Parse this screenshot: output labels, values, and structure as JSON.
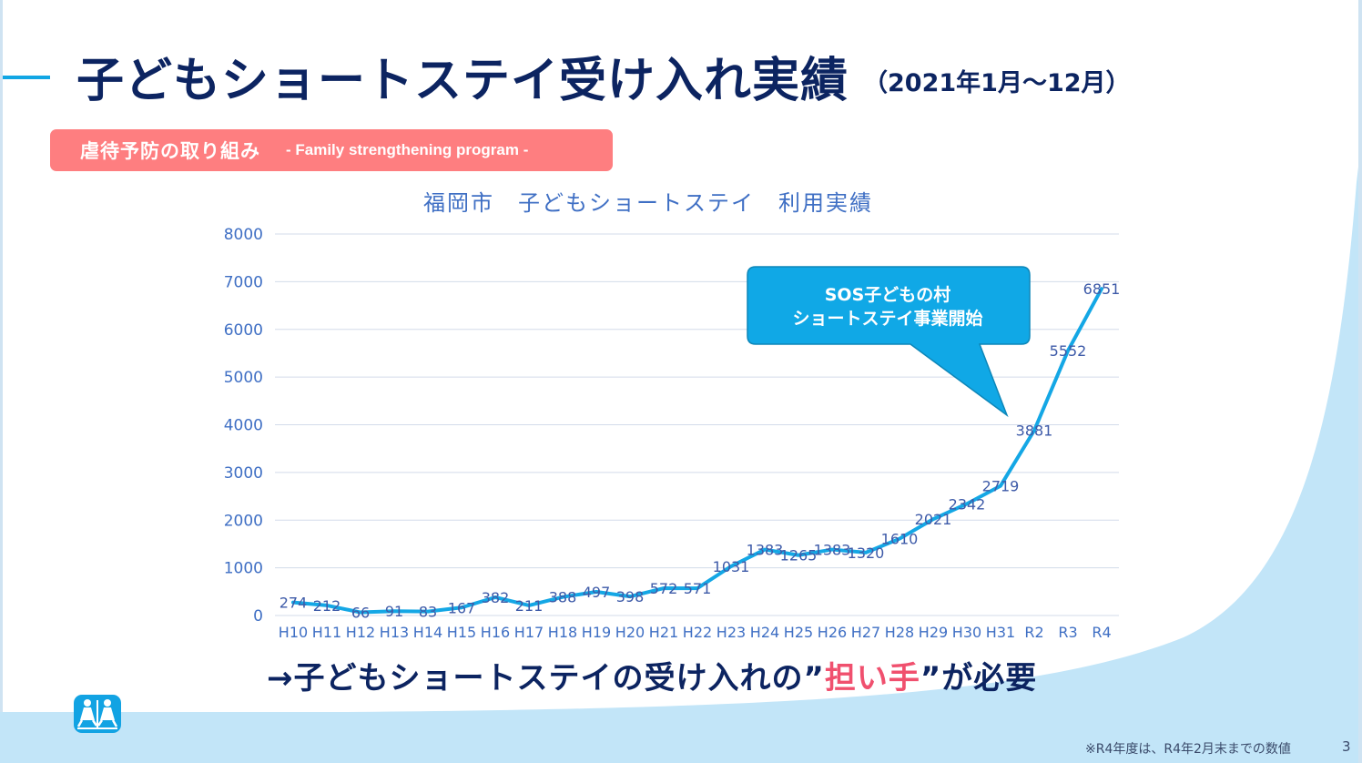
{
  "slide": {
    "title_main": "子どもショートステイ受け入れ実績",
    "title_sub": "（2021年1月～12月）",
    "tag_jp": "虐待予防の取り組み",
    "tag_en": "- Family strengthening program -",
    "conclusion_pre": "→子どもショートステイの受け入れの”",
    "conclusion_highlight": "担い手",
    "conclusion_post": "”が必要",
    "footnote": "※R4年度は、R4年2月末までの数値",
    "page_number": "3",
    "logo_icon": "sos-childrens-villages-logo-icon",
    "colors": {
      "title": "#0c2461",
      "accent": "#11a6e4",
      "tag_bg": "#fe7e80",
      "highlight": "#f0506e",
      "line": "#14a7e5",
      "axis_text": "#3f6fc4",
      "label_text": "#3d5aa8",
      "callout_bg": "#10a8e6",
      "bottom_bg": "#c2e5f8"
    }
  },
  "callout": {
    "line1": "SOS子どもの村",
    "line2": "ショートステイ事業開始"
  },
  "chart_data": {
    "type": "line",
    "title": "福岡市　子どもショートステイ　利用実績",
    "xlabel": "",
    "ylabel": "",
    "ylim": [
      0,
      8000
    ],
    "yticks": [
      0,
      1000,
      2000,
      3000,
      4000,
      5000,
      6000,
      7000,
      8000
    ],
    "grid": true,
    "legend": "none",
    "categories": [
      "H10",
      "H11",
      "H12",
      "H13",
      "H14",
      "H15",
      "H16",
      "H17",
      "H18",
      "H19",
      "H20",
      "H21",
      "H22",
      "H23",
      "H24",
      "H25",
      "H26",
      "H27",
      "H28",
      "H29",
      "H30",
      "H31",
      "R2",
      "R3",
      "R4"
    ],
    "series": [
      {
        "name": "利用実績",
        "values": [
          274,
          212,
          66,
          91,
          83,
          167,
          382,
          211,
          388,
          497,
          398,
          572,
          571,
          1031,
          1383,
          1265,
          1383,
          1320,
          1610,
          2021,
          2342,
          2719,
          3881,
          5552,
          6851
        ]
      }
    ],
    "annotations": [
      {
        "text": "SOS子どもの村 ショートステイ事業開始",
        "points_to": "R2"
      }
    ]
  }
}
